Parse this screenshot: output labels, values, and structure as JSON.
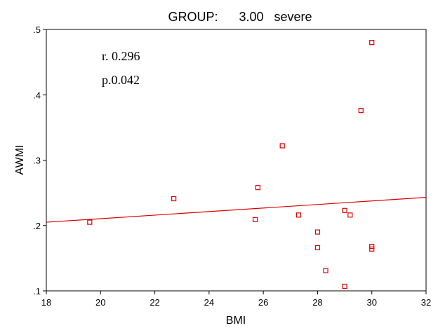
{
  "chart_data": {
    "type": "scatter",
    "title": "GROUP:      3.00   severe",
    "xlabel": "BMI",
    "ylabel": "AWMI",
    "xlim": [
      18,
      32
    ],
    "ylim": [
      0.1,
      0.5
    ],
    "x_ticks": [
      18,
      20,
      22,
      24,
      26,
      28,
      30,
      32
    ],
    "x_tick_labels": [
      "18",
      "20",
      "22",
      "24",
      "26",
      "28",
      "30",
      "32"
    ],
    "y_ticks": [
      0.1,
      0.2,
      0.3,
      0.4,
      0.5
    ],
    "y_tick_labels": [
      ".1",
      ".2",
      ".3",
      ".4",
      ".5"
    ],
    "grid": false,
    "series": [
      {
        "marker": "open-square",
        "color": "#dd0000",
        "points": [
          {
            "x": 19.6,
            "y": 0.205
          },
          {
            "x": 22.7,
            "y": 0.241
          },
          {
            "x": 25.7,
            "y": 0.209
          },
          {
            "x": 25.8,
            "y": 0.258
          },
          {
            "x": 26.7,
            "y": 0.322
          },
          {
            "x": 27.3,
            "y": 0.216
          },
          {
            "x": 28.0,
            "y": 0.19
          },
          {
            "x": 28.0,
            "y": 0.166
          },
          {
            "x": 28.3,
            "y": 0.131
          },
          {
            "x": 29.0,
            "y": 0.223
          },
          {
            "x": 29.2,
            "y": 0.216
          },
          {
            "x": 29.0,
            "y": 0.107
          },
          {
            "x": 29.6,
            "y": 0.376
          },
          {
            "x": 30.0,
            "y": 0.48
          },
          {
            "x": 30.0,
            "y": 0.168
          },
          {
            "x": 30.0,
            "y": 0.164
          }
        ]
      }
    ],
    "fit_line": {
      "color": "#dd0000",
      "points": [
        {
          "x": 18,
          "y": 0.205
        },
        {
          "x": 32,
          "y": 0.243
        }
      ]
    },
    "annotations": [
      "r. 0.296",
      "p.0.042"
    ]
  }
}
